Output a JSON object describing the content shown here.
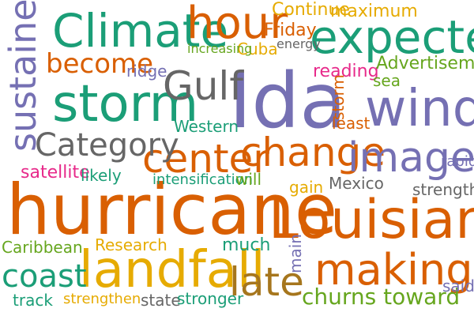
{
  "palette": {
    "teal": "#1b9e77",
    "orange": "#d95f02",
    "purple": "#7570b3",
    "pink": "#e7298a",
    "green": "#66a61e",
    "gold": "#e6ab02",
    "brown": "#a6761d",
    "gray": "#666666"
  },
  "words": [
    {
      "text": "hurricane",
      "color": "#d95f02"
    },
    {
      "text": "Ida",
      "color": "#7570b3"
    },
    {
      "text": "Louisiana",
      "color": "#d95f02"
    },
    {
      "text": "landfall",
      "color": "#e6ab02"
    },
    {
      "text": "storm",
      "color": "#1b9e77"
    },
    {
      "text": "Climate",
      "color": "#1b9e77"
    },
    {
      "text": "expected",
      "color": "#1b9e77"
    },
    {
      "text": "winds",
      "color": "#7570b3"
    },
    {
      "text": "hour",
      "color": "#d95f02"
    },
    {
      "text": "change",
      "color": "#d95f02"
    },
    {
      "text": "Gulf",
      "color": "#666666"
    },
    {
      "text": "center",
      "color": "#d95f02"
    },
    {
      "text": "images",
      "color": "#7570b3"
    },
    {
      "text": "making",
      "color": "#d95f02"
    },
    {
      "text": "late",
      "color": "#a6761d"
    },
    {
      "text": "Category",
      "color": "#666666"
    },
    {
      "text": "coast",
      "color": "#1b9e77"
    },
    {
      "text": "sustained",
      "color": "#7570b3"
    },
    {
      "text": "become",
      "color": "#d95f02"
    },
    {
      "text": "churns toward",
      "color": "#66a61e"
    },
    {
      "text": "Continue",
      "color": "#e6ab02"
    },
    {
      "text": "maximum",
      "color": "#e6ab02"
    },
    {
      "text": "Friday",
      "color": "#d95f02"
    },
    {
      "text": "Cuba",
      "color": "#e6ab02"
    },
    {
      "text": "energy",
      "color": "#666666"
    },
    {
      "text": "increasing",
      "color": "#66a61e"
    },
    {
      "text": "ridge",
      "color": "#7570b3"
    },
    {
      "text": "reading",
      "color": "#e7298a"
    },
    {
      "text": "Advertisement",
      "color": "#66a61e"
    },
    {
      "text": "sea",
      "color": "#66a61e"
    },
    {
      "text": "storm",
      "color": "#d95f02"
    },
    {
      "text": "least",
      "color": "#d95f02"
    },
    {
      "text": "Western",
      "color": "#1b9e77"
    },
    {
      "text": "satellite",
      "color": "#e7298a"
    },
    {
      "text": "likely",
      "color": "#1b9e77"
    },
    {
      "text": "intensification",
      "color": "#1b9e77"
    },
    {
      "text": "will",
      "color": "#66a61e"
    },
    {
      "text": "gain",
      "color": "#e6ab02"
    },
    {
      "text": "Mexico",
      "color": "#666666"
    },
    {
      "text": "rapid",
      "color": "#7570b3"
    },
    {
      "text": "strength",
      "color": "#666666"
    },
    {
      "text": "Caribbean",
      "color": "#66a61e"
    },
    {
      "text": "Research",
      "color": "#e6ab02"
    },
    {
      "text": "much",
      "color": "#1b9e77"
    },
    {
      "text": "main",
      "color": "#7570b3"
    },
    {
      "text": "track",
      "color": "#1b9e77"
    },
    {
      "text": "strengthen",
      "color": "#e6ab02"
    },
    {
      "text": "state",
      "color": "#666666"
    },
    {
      "text": "stronger",
      "color": "#1b9e77"
    },
    {
      "text": "said",
      "color": "#7570b3"
    }
  ]
}
